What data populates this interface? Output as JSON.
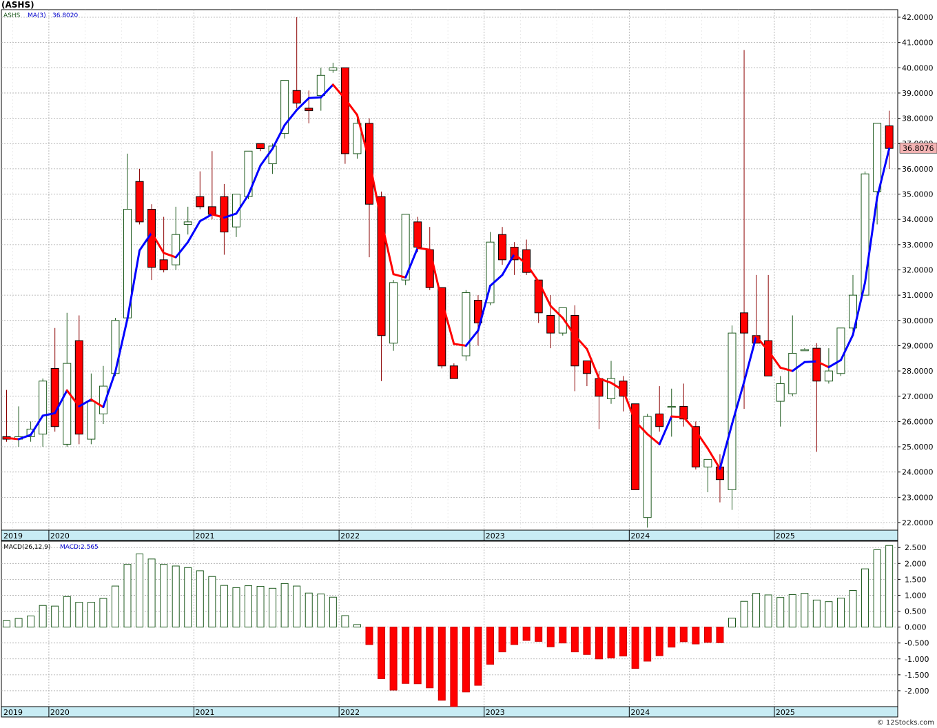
{
  "title": "(ASHS)",
  "footer": "© 12Stocks.com",
  "colors": {
    "up": "#1e5a1e",
    "down": "#ff0000",
    "ma_up": "#0000ff",
    "ma_down": "#ff0000",
    "axis_band": "#c8ecf4",
    "grid": "#aaaaaa"
  },
  "chart_data": {
    "type": "candlestick",
    "interval": "monthly",
    "price_panel": {
      "ticker_label": "ASHS",
      "ma_label": "MA(3)",
      "ma_value": "36.8020",
      "last_price_label": "36.8076",
      "ylim": [
        21.7,
        42.3
      ],
      "ytick_labels": [
        "22.0000",
        "23.0000",
        "24.0000",
        "25.0000",
        "26.0000",
        "27.0000",
        "28.0000",
        "29.0000",
        "30.0000",
        "31.0000",
        "32.0000",
        "33.0000",
        "34.0000",
        "35.0000",
        "36.0000",
        "37.0000",
        "38.0000",
        "39.0000",
        "40.0000",
        "41.0000",
        "42.0000"
      ],
      "ohlc": [
        [
          25.4,
          27.25,
          25.2,
          25.3
        ],
        [
          25.3,
          26.6,
          25.0,
          25.4
        ],
        [
          25.4,
          26.0,
          25.2,
          25.7
        ],
        [
          25.5,
          27.7,
          25.0,
          27.6
        ],
        [
          28.1,
          29.7,
          25.6,
          25.8
        ],
        [
          25.1,
          30.3,
          25.0,
          28.3
        ],
        [
          29.2,
          30.2,
          25.1,
          25.5
        ],
        [
          25.3,
          27.9,
          25.1,
          26.8
        ],
        [
          26.3,
          28.2,
          25.9,
          27.4
        ],
        [
          27.9,
          30.1,
          27.8,
          30.0
        ],
        [
          30.1,
          36.6,
          30.0,
          34.4
        ],
        [
          35.5,
          36.0,
          33.8,
          33.9
        ],
        [
          34.4,
          34.6,
          31.6,
          32.1
        ],
        [
          32.4,
          34.1,
          31.9,
          32.0
        ],
        [
          32.2,
          34.5,
          32.0,
          33.4
        ],
        [
          33.8,
          34.5,
          33.4,
          33.9
        ],
        [
          34.9,
          35.9,
          34.4,
          34.5
        ],
        [
          34.5,
          36.7,
          34.0,
          34.2
        ],
        [
          34.9,
          35.4,
          32.6,
          33.5
        ],
        [
          33.7,
          35.0,
          33.3,
          35.0
        ],
        [
          34.9,
          36.7,
          34.8,
          36.7
        ],
        [
          37.0,
          37.0,
          36.7,
          36.8
        ],
        [
          36.2,
          37.0,
          35.8,
          36.9
        ],
        [
          37.4,
          39.5,
          37.2,
          39.5
        ],
        [
          39.1,
          42.0,
          38.4,
          38.6
        ],
        [
          38.4,
          39.1,
          37.8,
          38.3
        ],
        [
          38.9,
          40.0,
          38.3,
          39.7
        ],
        [
          39.9,
          40.2,
          39.8,
          40.0
        ],
        [
          40.0,
          40.0,
          36.2,
          36.6
        ],
        [
          36.6,
          38.0,
          36.4,
          37.8
        ],
        [
          37.8,
          38.0,
          32.5,
          34.6
        ],
        [
          34.9,
          35.1,
          27.6,
          29.4
        ],
        [
          29.1,
          31.6,
          28.8,
          31.5
        ],
        [
          31.6,
          34.2,
          31.4,
          34.2
        ],
        [
          33.9,
          34.1,
          32.7,
          32.9
        ],
        [
          32.8,
          33.7,
          31.2,
          31.3
        ],
        [
          31.3,
          31.3,
          28.1,
          28.2
        ],
        [
          28.2,
          28.3,
          27.7,
          27.7
        ],
        [
          28.6,
          31.2,
          28.4,
          31.1
        ],
        [
          30.8,
          31.0,
          29.0,
          29.9
        ],
        [
          30.7,
          33.5,
          30.6,
          33.1
        ],
        [
          33.4,
          33.7,
          32.2,
          32.4
        ],
        [
          32.9,
          33.1,
          31.8,
          32.4
        ],
        [
          32.8,
          33.2,
          31.8,
          31.9
        ],
        [
          31.6,
          31.6,
          29.9,
          30.3
        ],
        [
          30.2,
          31.0,
          28.9,
          29.5
        ],
        [
          29.5,
          30.5,
          29.4,
          30.5
        ],
        [
          30.2,
          30.6,
          27.2,
          28.2
        ],
        [
          28.4,
          28.4,
          27.4,
          27.9
        ],
        [
          27.7,
          28.0,
          25.7,
          27.0
        ],
        [
          26.9,
          28.4,
          26.7,
          27.7
        ],
        [
          27.6,
          27.8,
          26.4,
          27.0
        ],
        [
          26.7,
          26.7,
          23.3,
          23.3
        ],
        [
          22.2,
          26.3,
          21.8,
          26.2
        ],
        [
          26.3,
          27.4,
          25.6,
          25.8
        ],
        [
          26.6,
          27.3,
          25.4,
          26.6
        ],
        [
          26.6,
          27.5,
          25.8,
          26.1
        ],
        [
          25.8,
          26.0,
          24.1,
          24.2
        ],
        [
          24.2,
          24.5,
          23.2,
          24.5
        ],
        [
          24.2,
          24.7,
          22.8,
          23.7
        ],
        [
          23.3,
          29.8,
          22.5,
          29.5
        ],
        [
          30.3,
          40.7,
          26.5,
          29.5
        ],
        [
          29.4,
          31.8,
          29.2,
          29.1
        ],
        [
          29.2,
          31.8,
          27.8,
          27.8
        ],
        [
          26.8,
          27.8,
          25.8,
          27.5
        ],
        [
          27.1,
          30.2,
          27.0,
          28.7
        ],
        [
          28.8,
          28.9,
          28.8,
          28.85
        ],
        [
          28.9,
          29.1,
          24.8,
          27.6
        ],
        [
          27.6,
          28.9,
          27.5,
          28.0
        ],
        [
          27.9,
          29.7,
          27.8,
          29.7
        ],
        [
          29.7,
          31.8,
          29.4,
          31.0
        ],
        [
          31.0,
          35.9,
          31.0,
          35.8
        ],
        [
          35.1,
          37.8,
          33.8,
          37.8
        ],
        [
          37.7,
          38.3,
          36.0,
          36.81
        ]
      ],
      "ma": [
        25.35,
        25.3,
        25.47,
        26.23,
        26.33,
        27.23,
        26.6,
        26.87,
        26.57,
        27.97,
        30.07,
        32.77,
        33.47,
        32.67,
        32.5,
        33.1,
        33.93,
        34.2,
        34.07,
        34.23,
        34.97,
        36.13,
        36.8,
        37.73,
        38.33,
        38.8,
        38.83,
        39.33,
        38.77,
        38.13,
        36.33,
        33.93,
        31.83,
        31.7,
        32.87,
        32.8,
        30.77,
        29.07,
        29.0,
        29.6,
        31.37,
        31.8,
        32.63,
        32.23,
        31.53,
        30.57,
        30.1,
        29.4,
        28.87,
        27.7,
        27.53,
        27.23,
        26.0,
        25.5,
        25.1,
        26.2,
        26.17,
        25.63,
        24.93,
        24.13,
        25.9,
        27.57,
        29.37,
        28.8,
        28.13,
        28.0,
        28.35,
        28.38,
        28.15,
        28.43,
        29.43,
        31.5,
        34.87,
        36.8
      ],
      "ma_trend_up": [
        null,
        false,
        true,
        true,
        true,
        true,
        false,
        true,
        false,
        true,
        true,
        true,
        true,
        false,
        false,
        true,
        true,
        true,
        false,
        true,
        true,
        true,
        true,
        true,
        true,
        true,
        true,
        true,
        false,
        false,
        false,
        false,
        false,
        false,
        true,
        false,
        false,
        false,
        false,
        true,
        true,
        true,
        true,
        false,
        false,
        false,
        false,
        false,
        false,
        false,
        false,
        false,
        false,
        false,
        false,
        true,
        false,
        false,
        false,
        false,
        true,
        true,
        true,
        false,
        false,
        false,
        true,
        true,
        false,
        true,
        true,
        true,
        true,
        true
      ]
    },
    "macd_panel": {
      "label": "MACD(26,12,9)",
      "value_label": "MACD:2.565",
      "ylim": [
        -2.5,
        2.7
      ],
      "ytick_labels": [
        "-2.000",
        "-1.500",
        "-1.000",
        "-0.500",
        "0.000",
        "0.500",
        "1.000",
        "1.500",
        "2.000",
        "2.500"
      ],
      "values": [
        0.2,
        0.27,
        0.35,
        0.68,
        0.66,
        0.96,
        0.78,
        0.78,
        0.9,
        1.29,
        1.97,
        2.3,
        2.14,
        1.97,
        1.92,
        1.87,
        1.77,
        1.59,
        1.31,
        1.24,
        1.3,
        1.28,
        1.22,
        1.37,
        1.29,
        1.07,
        1.04,
        0.94,
        0.36,
        0.08,
        -0.55,
        -1.62,
        -1.98,
        -1.77,
        -1.78,
        -1.91,
        -2.3,
        -2.5,
        -2.04,
        -1.83,
        -1.17,
        -0.78,
        -0.55,
        -0.42,
        -0.45,
        -0.62,
        -0.5,
        -0.78,
        -0.86,
        -1.0,
        -0.97,
        -0.91,
        -1.3,
        -1.07,
        -0.9,
        -0.63,
        -0.46,
        -0.53,
        -0.48,
        -0.49,
        0.28,
        0.81,
        1.06,
        1.01,
        0.93,
        1.02,
        1.06,
        0.85,
        0.8,
        0.91,
        1.15,
        1.83,
        2.43,
        2.565
      ]
    },
    "x_axis": {
      "year_labels": [
        "2019",
        "2020",
        "2021",
        "2022",
        "2023",
        "2024",
        "2025"
      ],
      "year_start_index": [
        0,
        4,
        16,
        28,
        40,
        52,
        64
      ]
    }
  }
}
